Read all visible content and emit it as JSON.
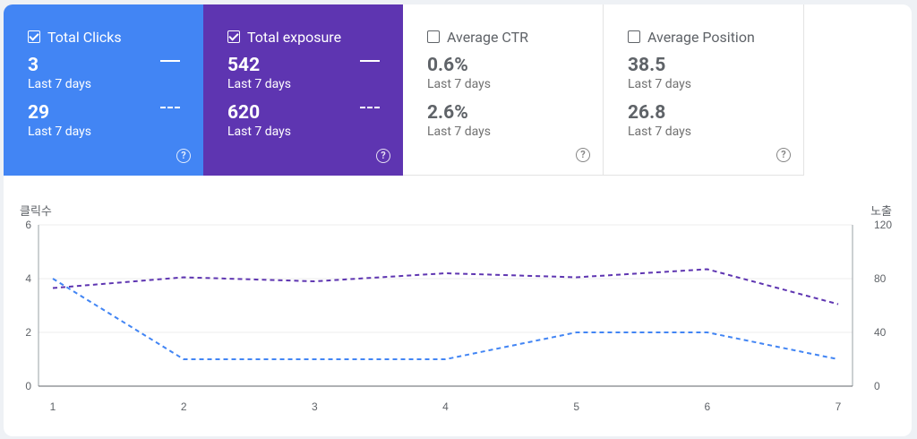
{
  "metrics": [
    {
      "label": "Total Clicks",
      "checked": true,
      "value1": "3",
      "period1": "Last 7 days",
      "value2": "29",
      "period2": "Last 7 days",
      "style": "blue"
    },
    {
      "label": "Total exposure",
      "checked": true,
      "value1": "542",
      "period1": "Last 7 days",
      "value2": "620",
      "period2": "Last 7 days",
      "style": "purple"
    },
    {
      "label": "Average CTR",
      "checked": false,
      "value1": "0.6%",
      "period1": "Last 7 days",
      "value2": "2.6%",
      "period2": "Last 7 days",
      "style": "white"
    },
    {
      "label": "Average Position",
      "checked": false,
      "value1": "38.5",
      "period1": "Last 7 days",
      "value2": "26.8",
      "period2": "Last 7 days",
      "style": "white"
    }
  ],
  "help_icon": "?",
  "chart_data": {
    "type": "line",
    "ylabel_left": "클릭수",
    "ylabel_right": "노출",
    "x": [
      1,
      2,
      3,
      4,
      5,
      6,
      7
    ],
    "ylim_left": [
      0,
      6
    ],
    "ylim_right": [
      0,
      120
    ],
    "yticks_left": [
      0,
      2,
      4,
      6
    ],
    "yticks_right": [
      0,
      40,
      80,
      120
    ],
    "grid": true,
    "series": [
      {
        "axis": "left",
        "color": "#4285f4",
        "dashed": true,
        "values": [
          4,
          1,
          1,
          1,
          2,
          2,
          1
        ]
      },
      {
        "axis": "right",
        "color": "#5e35b1",
        "dashed": true,
        "values": [
          73,
          81,
          78,
          84,
          81,
          87,
          61
        ]
      }
    ]
  }
}
